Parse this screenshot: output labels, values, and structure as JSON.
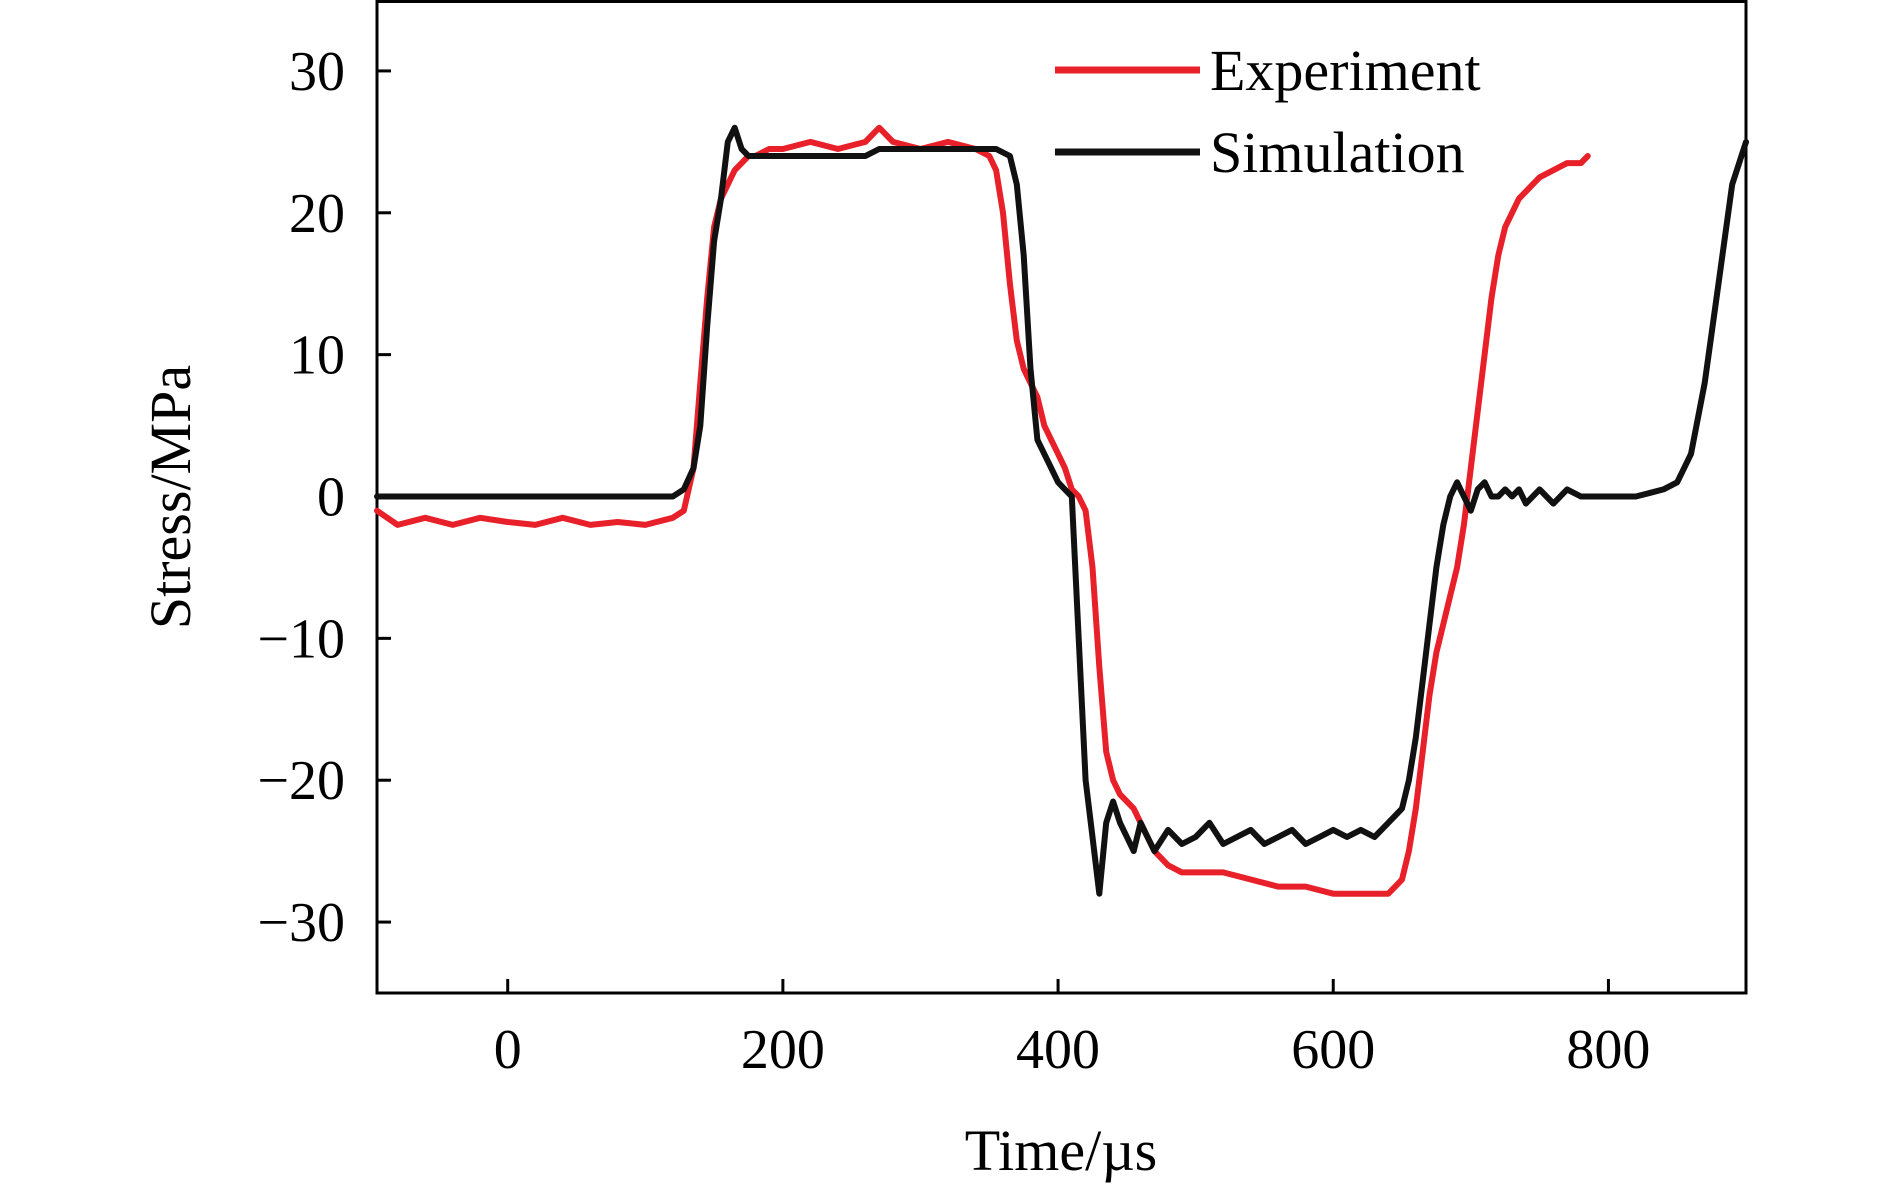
{
  "chart_data": {
    "type": "line",
    "title": "",
    "xlabel": "Time/µs",
    "ylabel": "Stress/MPa",
    "xlim": [
      -95,
      900
    ],
    "ylim": [
      -35,
      35
    ],
    "xticks": [
      0,
      200,
      400,
      600,
      800
    ],
    "yticks": [
      -30,
      -20,
      -10,
      0,
      10,
      20,
      30
    ],
    "xtick_labels": [
      "0",
      "200",
      "400",
      "600",
      "800"
    ],
    "ytick_labels": [
      "−30",
      "−20",
      "−10",
      "0",
      "10",
      "20",
      "30"
    ],
    "grid": false,
    "legend_position": "top-right",
    "series": [
      {
        "name": "Experiment",
        "color": "#e8202a",
        "x": [
          -95,
          -80,
          -60,
          -40,
          -20,
          0,
          20,
          40,
          60,
          80,
          100,
          120,
          128,
          135,
          140,
          145,
          150,
          155,
          160,
          165,
          170,
          175,
          180,
          190,
          200,
          220,
          240,
          260,
          270,
          280,
          300,
          320,
          340,
          350,
          355,
          360,
          365,
          370,
          375,
          380,
          385,
          390,
          395,
          400,
          405,
          410,
          415,
          420,
          425,
          430,
          435,
          440,
          445,
          450,
          455,
          460,
          465,
          470,
          480,
          490,
          500,
          520,
          540,
          560,
          580,
          600,
          620,
          640,
          645,
          650,
          655,
          660,
          665,
          670,
          675,
          680,
          685,
          690,
          695,
          700,
          705,
          710,
          715,
          720,
          725,
          730,
          735,
          740,
          745,
          750,
          760,
          770,
          780,
          785
        ],
        "y": [
          -1,
          -2,
          -1.5,
          -2,
          -1.5,
          -1.8,
          -2,
          -1.5,
          -2,
          -1.8,
          -2,
          -1.5,
          -1,
          2,
          8,
          14,
          19,
          21,
          22,
          23,
          23.5,
          24,
          24,
          24.5,
          24.5,
          25,
          24.5,
          25,
          26,
          25,
          24.5,
          25,
          24.5,
          24,
          23,
          20,
          15,
          11,
          9,
          8,
          7,
          5,
          4,
          3,
          2,
          0.5,
          0,
          -1,
          -5,
          -12,
          -18,
          -20,
          -21,
          -21.5,
          -22,
          -23,
          -24,
          -25,
          -26,
          -26.5,
          -26.5,
          -26.5,
          -27,
          -27.5,
          -27.5,
          -28,
          -28,
          -28,
          -27.5,
          -27,
          -25,
          -22,
          -18,
          -14,
          -11,
          -9,
          -7,
          -5,
          -2,
          2,
          6,
          10,
          14,
          17,
          19,
          20,
          21,
          21.5,
          22,
          22.5,
          23,
          23.5,
          23.5,
          24
        ]
      },
      {
        "name": "Simulation",
        "color": "#111111",
        "x": [
          -95,
          0,
          120,
          128,
          135,
          140,
          145,
          150,
          155,
          160,
          165,
          170,
          175,
          180,
          200,
          240,
          260,
          270,
          300,
          340,
          355,
          365,
          370,
          375,
          380,
          385,
          390,
          395,
          400,
          405,
          410,
          415,
          420,
          425,
          430,
          435,
          440,
          445,
          450,
          455,
          460,
          465,
          470,
          480,
          490,
          500,
          510,
          520,
          530,
          540,
          550,
          560,
          570,
          580,
          590,
          600,
          610,
          620,
          630,
          640,
          650,
          655,
          660,
          665,
          670,
          675,
          680,
          685,
          690,
          695,
          700,
          705,
          710,
          715,
          720,
          725,
          730,
          735,
          740,
          750,
          760,
          770,
          780,
          790,
          800,
          820,
          840,
          850,
          860,
          870,
          880,
          890,
          900
        ],
        "y": [
          0,
          0,
          0,
          0.5,
          2,
          5,
          12,
          18,
          21,
          25,
          26,
          24.5,
          24,
          24,
          24,
          24,
          24,
          24.5,
          24.5,
          24.5,
          24.5,
          24,
          22,
          17,
          9,
          4,
          3,
          2,
          1,
          0.5,
          0,
          -10,
          -20,
          -24,
          -28,
          -23,
          -21.5,
          -23,
          -24,
          -25,
          -23,
          -24,
          -25,
          -23.5,
          -24.5,
          -24,
          -23,
          -24.5,
          -24,
          -23.5,
          -24.5,
          -24,
          -23.5,
          -24.5,
          -24,
          -23.5,
          -24,
          -23.5,
          -24,
          -23,
          -22,
          -20,
          -17,
          -13,
          -9,
          -5,
          -2,
          0,
          1,
          0,
          -1,
          0.5,
          1,
          0,
          0,
          0.5,
          0,
          0.5,
          -0.5,
          0.5,
          -0.5,
          0.5,
          0,
          0,
          0,
          0,
          0.5,
          1,
          3,
          8,
          15,
          22,
          25
        ]
      }
    ]
  }
}
